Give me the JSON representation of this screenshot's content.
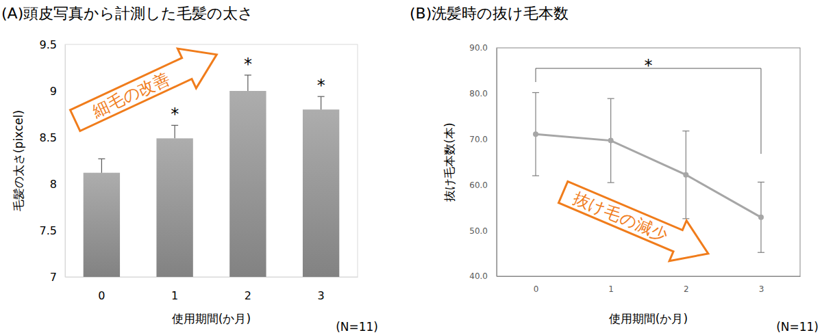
{
  "chart_data": [
    {
      "type": "bar",
      "title": "(A)頭皮写真から計測した毛髪の太さ",
      "y_label": "毛髪の太さ(pixcel)",
      "x_label": "使用期間(か月)",
      "note": "(N=11)",
      "annotation": "細毛の改善",
      "categories": [
        "0",
        "1",
        "2",
        "3"
      ],
      "values": [
        8.12,
        8.49,
        9.0,
        8.8
      ],
      "errors": [
        0.15,
        0.14,
        0.17,
        0.14
      ],
      "significance": [
        null,
        "*",
        "*",
        "*"
      ],
      "color": "#999999",
      "ylim": [
        7,
        9.5
      ],
      "yticks": [
        7,
        7.5,
        8,
        8.5,
        9,
        9.5
      ],
      "grid": false
    },
    {
      "type": "line",
      "title": "(B)洗髪時の抜け毛本数",
      "y_label": "抜け毛本数(本)",
      "x_label": "使用期間(か月)",
      "note": "(N=11)",
      "annotation": "抜け毛の減少",
      "categories": [
        "0",
        "1",
        "2",
        "3"
      ],
      "values": [
        71.1,
        69.7,
        62.2,
        52.9
      ],
      "errors": [
        9.1,
        9.2,
        9.6,
        7.7
      ],
      "bracket": {
        "from": "0",
        "to": "3",
        "label": "*"
      },
      "color": "#a6a6a6",
      "marker": "circle",
      "ylim": [
        40,
        90
      ],
      "yticks": [
        {
          "value": 40,
          "label": "40.0"
        },
        {
          "value": 50,
          "label": "50.0"
        },
        {
          "value": 60,
          "label": "60.0"
        },
        {
          "value": 70,
          "label": "70.0"
        },
        {
          "value": 80,
          "label": "80.0"
        },
        {
          "value": 90,
          "label": "90.0"
        }
      ],
      "grid": false
    }
  ]
}
